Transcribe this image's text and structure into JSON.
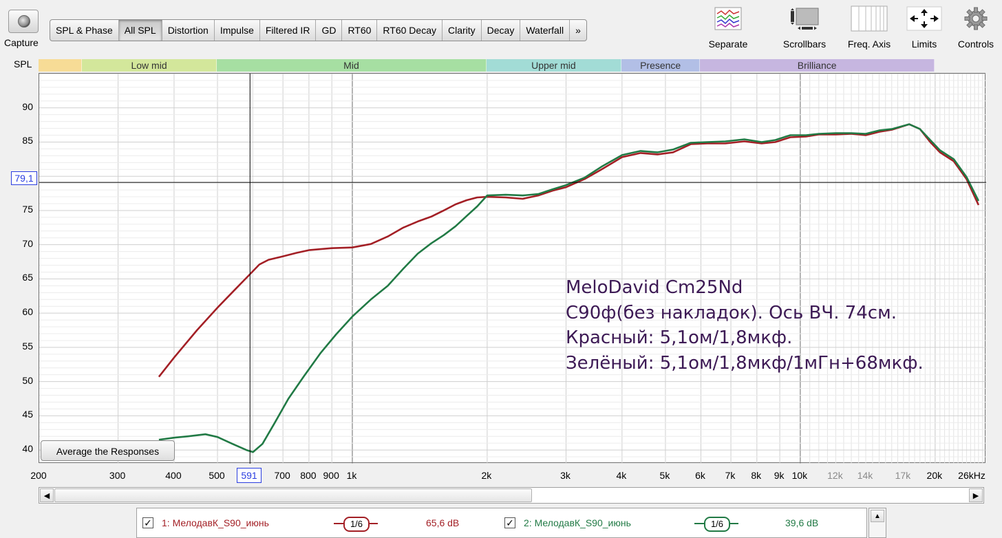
{
  "capture": {
    "label": "Capture",
    "icon": "camera-icon"
  },
  "tabs": [
    {
      "label": "SPL & Phase",
      "active": false
    },
    {
      "label": "All SPL",
      "active": true
    },
    {
      "label": "Distortion",
      "active": false
    },
    {
      "label": "Impulse",
      "active": false
    },
    {
      "label": "Filtered IR",
      "active": false
    },
    {
      "label": "GD",
      "active": false
    },
    {
      "label": "RT60",
      "active": false
    },
    {
      "label": "RT60 Decay",
      "active": false
    },
    {
      "label": "Clarity",
      "active": false
    },
    {
      "label": "Decay",
      "active": false
    },
    {
      "label": "Waterfall",
      "active": false
    },
    {
      "label": "»",
      "active": false
    }
  ],
  "toolbar": {
    "separate": "Separate",
    "scrollbars": "Scrollbars",
    "freq_axis": "Freq. Axis",
    "limits": "Limits",
    "controls": "Controls"
  },
  "spl_label": "SPL",
  "bands": [
    {
      "label": "",
      "from": 200,
      "to": 250,
      "color": "#f7dc96"
    },
    {
      "label": "Low mid",
      "from": 250,
      "to": 500,
      "color": "#d3e79b"
    },
    {
      "label": "Mid",
      "from": 500,
      "to": 2000,
      "color": "#a6dfa2"
    },
    {
      "label": "Upper mid",
      "from": 2000,
      "to": 4000,
      "color": "#a2dcd6"
    },
    {
      "label": "Presence",
      "from": 4000,
      "to": 6000,
      "color": "#b2bfe6"
    },
    {
      "label": "Brilliance",
      "from": 6000,
      "to": 20000,
      "color": "#c6b6e0"
    }
  ],
  "chart_data": {
    "type": "line",
    "xscale": "log",
    "xlim": [
      200,
      26000
    ],
    "ylim": [
      38,
      95
    ],
    "x_unit": "Hz",
    "yticks": [
      40,
      45,
      50,
      55,
      60,
      65,
      70,
      75,
      80,
      85,
      90
    ],
    "xticks": [
      {
        "v": 200,
        "t": "200",
        "major": true
      },
      {
        "v": 300,
        "t": "300",
        "major": true
      },
      {
        "v": 400,
        "t": "400",
        "major": true
      },
      {
        "v": 500,
        "t": "500",
        "major": true
      },
      {
        "v": 700,
        "t": "700",
        "major": true
      },
      {
        "v": 800,
        "t": "800",
        "major": true
      },
      {
        "v": 900,
        "t": "900",
        "major": true
      },
      {
        "v": 1000,
        "t": "1k",
        "major": true
      },
      {
        "v": 2000,
        "t": "2k",
        "major": true
      },
      {
        "v": 3000,
        "t": "3k",
        "major": true
      },
      {
        "v": 4000,
        "t": "4k",
        "major": true
      },
      {
        "v": 5000,
        "t": "5k",
        "major": true
      },
      {
        "v": 6000,
        "t": "6k",
        "major": true
      },
      {
        "v": 7000,
        "t": "7k",
        "major": true
      },
      {
        "v": 8000,
        "t": "8k",
        "major": true
      },
      {
        "v": 9000,
        "t": "9k",
        "major": true
      },
      {
        "v": 10000,
        "t": "10k",
        "major": true
      },
      {
        "v": 12000,
        "t": "12k",
        "major": false
      },
      {
        "v": 14000,
        "t": "14k",
        "major": false
      },
      {
        "v": 17000,
        "t": "17k",
        "major": false
      },
      {
        "v": 20000,
        "t": "20k",
        "major": true
      },
      {
        "v": 26000,
        "t": "26kHz",
        "major": true
      }
    ],
    "cursor": {
      "x": 591,
      "y": 79.1,
      "x_label": "591",
      "y_label": "79,1"
    },
    "series": [
      {
        "name": "1: МелодавК_S90_июнь",
        "color": "#a31f25",
        "points": [
          [
            370,
            50.7
          ],
          [
            400,
            53.5
          ],
          [
            450,
            57.5
          ],
          [
            500,
            60.8
          ],
          [
            550,
            63.6
          ],
          [
            591,
            65.7
          ],
          [
            620,
            67.1
          ],
          [
            650,
            67.8
          ],
          [
            700,
            68.3
          ],
          [
            750,
            68.8
          ],
          [
            800,
            69.2
          ],
          [
            900,
            69.5
          ],
          [
            1000,
            69.6
          ],
          [
            1100,
            70.1
          ],
          [
            1200,
            71.2
          ],
          [
            1300,
            72.5
          ],
          [
            1400,
            73.4
          ],
          [
            1500,
            74.1
          ],
          [
            1600,
            75.0
          ],
          [
            1700,
            75.9
          ],
          [
            1800,
            76.5
          ],
          [
            1900,
            76.9
          ],
          [
            2000,
            77.0
          ],
          [
            2200,
            76.9
          ],
          [
            2400,
            76.7
          ],
          [
            2600,
            77.2
          ],
          [
            2800,
            77.9
          ],
          [
            3000,
            78.4
          ],
          [
            3300,
            79.6
          ],
          [
            3600,
            81.0
          ],
          [
            4000,
            82.8
          ],
          [
            4400,
            83.4
          ],
          [
            4800,
            83.2
          ],
          [
            5200,
            83.5
          ],
          [
            5700,
            84.7
          ],
          [
            6200,
            84.8
          ],
          [
            6800,
            84.8
          ],
          [
            7500,
            85.1
          ],
          [
            8200,
            84.8
          ],
          [
            8800,
            85.0
          ],
          [
            9500,
            85.7
          ],
          [
            10300,
            85.8
          ],
          [
            11000,
            86.1
          ],
          [
            12000,
            86.1
          ],
          [
            13000,
            86.2
          ],
          [
            14000,
            86.0
          ],
          [
            15000,
            86.5
          ],
          [
            16000,
            86.8
          ],
          [
            17500,
            87.6
          ],
          [
            18500,
            86.9
          ],
          [
            19500,
            85.0
          ],
          [
            20500,
            83.5
          ],
          [
            22000,
            82.2
          ],
          [
            23500,
            79.6
          ],
          [
            25000,
            75.8
          ]
        ]
      },
      {
        "name": "2: МелодавК_S90_июнь",
        "color": "#217a45",
        "points": [
          [
            370,
            41.5
          ],
          [
            400,
            41.8
          ],
          [
            430,
            42.0
          ],
          [
            470,
            42.3
          ],
          [
            500,
            41.9
          ],
          [
            540,
            40.9
          ],
          [
            580,
            40.0
          ],
          [
            600,
            39.7
          ],
          [
            630,
            40.9
          ],
          [
            670,
            43.9
          ],
          [
            720,
            47.5
          ],
          [
            780,
            50.8
          ],
          [
            850,
            54.2
          ],
          [
            920,
            56.9
          ],
          [
            1000,
            59.5
          ],
          [
            1100,
            62.0
          ],
          [
            1200,
            64.0
          ],
          [
            1300,
            66.5
          ],
          [
            1400,
            68.7
          ],
          [
            1500,
            70.2
          ],
          [
            1600,
            71.4
          ],
          [
            1700,
            72.7
          ],
          [
            1800,
            74.2
          ],
          [
            1900,
            75.6
          ],
          [
            2000,
            77.2
          ],
          [
            2200,
            77.3
          ],
          [
            2400,
            77.2
          ],
          [
            2600,
            77.4
          ],
          [
            2800,
            78.1
          ],
          [
            3000,
            78.7
          ],
          [
            3300,
            79.8
          ],
          [
            3600,
            81.4
          ],
          [
            4000,
            83.1
          ],
          [
            4400,
            83.7
          ],
          [
            4800,
            83.5
          ],
          [
            5200,
            83.9
          ],
          [
            5700,
            84.9
          ],
          [
            6200,
            85.0
          ],
          [
            6800,
            85.1
          ],
          [
            7500,
            85.4
          ],
          [
            8200,
            85.0
          ],
          [
            8800,
            85.3
          ],
          [
            9500,
            86.0
          ],
          [
            10300,
            86.0
          ],
          [
            11000,
            86.2
          ],
          [
            12000,
            86.3
          ],
          [
            13000,
            86.3
          ],
          [
            14000,
            86.2
          ],
          [
            15000,
            86.7
          ],
          [
            16000,
            86.9
          ],
          [
            17500,
            87.6
          ],
          [
            18500,
            86.9
          ],
          [
            19500,
            85.3
          ],
          [
            20500,
            83.8
          ],
          [
            22000,
            82.5
          ],
          [
            23500,
            79.9
          ],
          [
            25000,
            76.4
          ]
        ]
      }
    ]
  },
  "average_button": "Average the Responses",
  "annotation": [
    "MeloDavid Cm25Nd",
    "C90ф(без накладок). Ось ВЧ. 74см.",
    "Красный: 5,1ом/1,8мкф.",
    "Зелёный: 5,1ом/1,8мкф/1мГн+68мкф."
  ],
  "legend": [
    {
      "checked": true,
      "name": "1: МелодавК_S90_июнь",
      "smoothing": "1/6",
      "value": "65,6 dB",
      "color": "#a31f25"
    },
    {
      "checked": true,
      "name": "2: МелодавК_S90_июнь",
      "smoothing": "1/6",
      "value": "39,6 dB",
      "color": "#217a45"
    }
  ]
}
